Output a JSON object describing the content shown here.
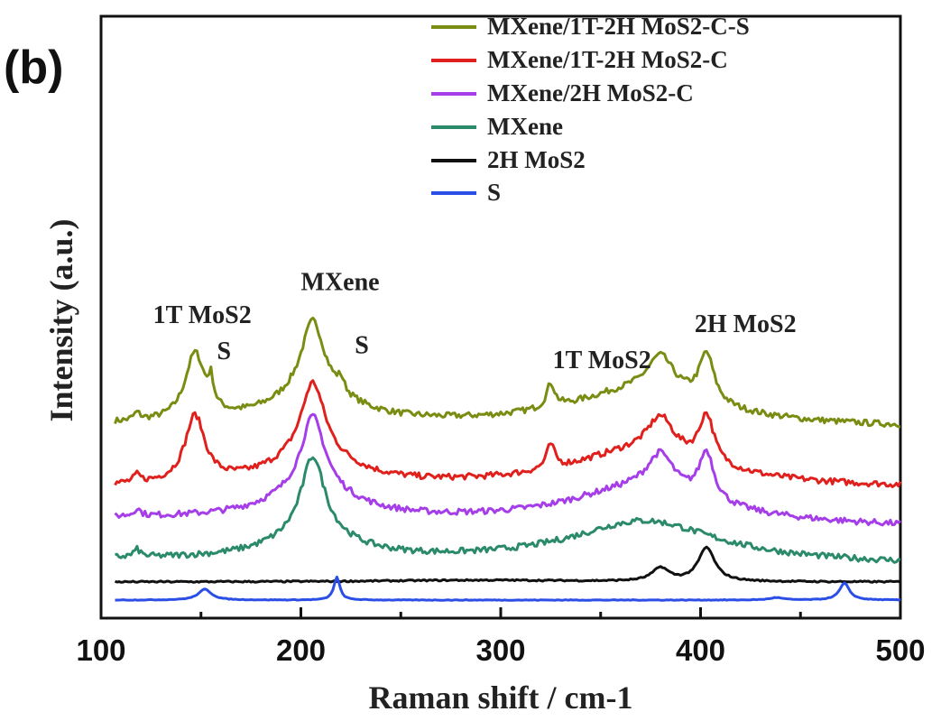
{
  "chart_data": {
    "type": "line",
    "panel_label": "(b)",
    "xlabel": "Raman shift / cm-1",
    "ylabel": "Intensity (a.u.)",
    "xlim": [
      100,
      500
    ],
    "ylim": [
      0,
      100
    ],
    "xticks": [
      100,
      200,
      300,
      400,
      500
    ],
    "xminor": [
      150,
      250,
      350,
      450
    ],
    "grid": false,
    "legend_position": "top-right",
    "x_start": 107,
    "series": [
      {
        "name": "MXene/1T-2H MoS2-C-S",
        "color": "#7a8c12",
        "offset": [
          32,
          31.5
        ],
        "noise": 0.5,
        "peaks": [
          [
            118,
            1.2,
            2
          ],
          [
            147,
            11,
            6
          ],
          [
            155,
            4,
            1.5
          ],
          [
            206,
            12,
            7
          ],
          [
            206,
            5,
            25
          ],
          [
            220,
            2,
            2
          ],
          [
            325,
            4,
            2.5
          ],
          [
            380,
            6,
            8
          ],
          [
            403,
            8,
            4.5
          ],
          [
            370,
            6,
            45
          ]
        ]
      },
      {
        "name": "MXene/1T-2H MoS2-C",
        "color": "#e0201c",
        "offset": [
          21.7,
          21.5
        ],
        "noise": 0.5,
        "peaks": [
          [
            118,
            1.2,
            2
          ],
          [
            147,
            11,
            6
          ],
          [
            206,
            12,
            7
          ],
          [
            206,
            5,
            25
          ],
          [
            325,
            4,
            2.5
          ],
          [
            380,
            6,
            8
          ],
          [
            403,
            8,
            4.5
          ],
          [
            370,
            6,
            45
          ]
        ]
      },
      {
        "name": "MXene/2H MoS2-C",
        "color": "#a53ee8",
        "offset": [
          16.5,
          15
        ],
        "noise": 0.5,
        "peaks": [
          [
            118,
            1.2,
            2
          ],
          [
            206,
            12,
            7
          ],
          [
            206,
            5,
            25
          ],
          [
            380,
            6,
            8
          ],
          [
            403,
            8,
            4.5
          ],
          [
            370,
            6,
            45
          ]
        ]
      },
      {
        "name": "MXene",
        "color": "#2a8a6a",
        "offset": [
          9.7,
          8.8
        ],
        "noise": 0.5,
        "peaks": [
          [
            118,
            1.2,
            2
          ],
          [
            206,
            13,
            7
          ],
          [
            206,
            4,
            25
          ],
          [
            372,
            7,
            45
          ]
        ]
      },
      {
        "name": "2H MoS2",
        "color": "#111111",
        "offset": [
          6,
          6
        ],
        "noise": 0.12,
        "peaks": [
          [
            380,
            2.2,
            5
          ],
          [
            403,
            5.6,
            5
          ],
          [
            290,
            0.3,
            60
          ]
        ]
      },
      {
        "name": "S",
        "color": "#2a4ee6",
        "offset": [
          3,
          3
        ],
        "noise": 0.05,
        "peaks": [
          [
            152,
            1.8,
            4
          ],
          [
            218,
            3.8,
            1.8
          ],
          [
            438,
            0.4,
            4
          ],
          [
            472,
            2.8,
            3
          ]
        ]
      }
    ],
    "annotations": [
      {
        "text": "1T MoS2",
        "x": 126,
        "y": 49
      },
      {
        "text": "S",
        "x": 158,
        "y": 43
      },
      {
        "text": "MXene",
        "x": 200,
        "y": 54.5
      },
      {
        "text": "S",
        "x": 227,
        "y": 44
      },
      {
        "text": "1T MoS2",
        "x": 326,
        "y": 41.5
      },
      {
        "text": "2H MoS2",
        "x": 397,
        "y": 47.5
      }
    ]
  }
}
